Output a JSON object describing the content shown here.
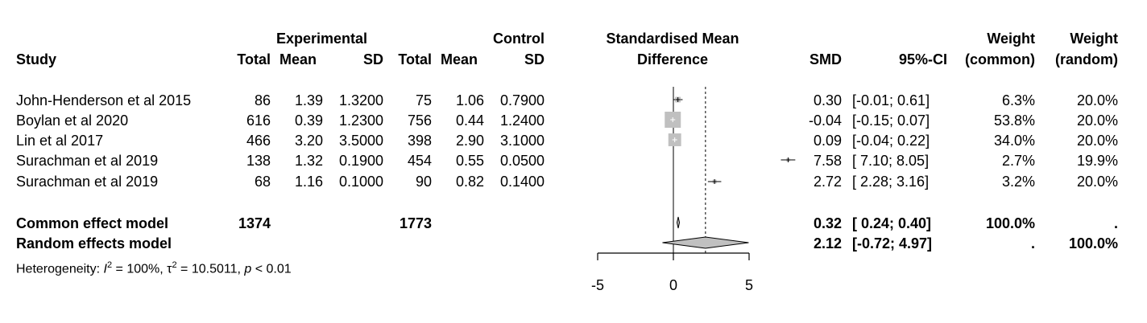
{
  "headers": {
    "study": "Study",
    "experimental": "Experimental",
    "control": "Control",
    "total": "Total",
    "mean": "Mean",
    "sd": "SD",
    "smd_title_1": "Standardised Mean",
    "smd_title_2": "Difference",
    "smd": "SMD",
    "ci": "95%-CI",
    "weight": "Weight",
    "weight_common": "(common)",
    "weight_random": "(random)"
  },
  "studies": [
    {
      "name": "John-Henderson et al 2015",
      "e_total": "86",
      "e_mean": "1.39",
      "e_sd": "1.3200",
      "c_total": "75",
      "c_mean": "1.06",
      "c_sd": "0.7900",
      "smd": "0.30",
      "ci": "[-0.01; 0.61]",
      "w_common": "6.3%",
      "w_random": "20.0%"
    },
    {
      "name": "Boylan et al 2020",
      "e_total": "616",
      "e_mean": "0.39",
      "e_sd": "1.2300",
      "c_total": "756",
      "c_mean": "0.44",
      "c_sd": "1.2400",
      "smd": "-0.04",
      "ci": "[-0.15; 0.07]",
      "w_common": "53.8%",
      "w_random": "20.0%"
    },
    {
      "name": "Lin et al 2017",
      "e_total": "466",
      "e_mean": "3.20",
      "e_sd": "3.5000",
      "c_total": "398",
      "c_mean": "2.90",
      "c_sd": "3.1000",
      "smd": "0.09",
      "ci": "[-0.04; 0.22]",
      "w_common": "34.0%",
      "w_random": "20.0%"
    },
    {
      "name": "Surachman et al 2019",
      "e_total": "138",
      "e_mean": "1.32",
      "e_sd": "0.1900",
      "c_total": "454",
      "c_mean": "0.55",
      "c_sd": "0.0500",
      "smd": "7.58",
      "ci": "[ 7.10; 8.05]",
      "w_common": "2.7%",
      "w_random": "19.9%"
    },
    {
      "name": "Surachman et al 2019",
      "e_total": "68",
      "e_mean": "1.16",
      "e_sd": "0.1000",
      "c_total": "90",
      "c_mean": "0.82",
      "c_sd": "0.1400",
      "smd": "2.72",
      "ci": "[ 2.28; 3.16]",
      "w_common": "3.2%",
      "w_random": "20.0%"
    }
  ],
  "common": {
    "label": "Common effect model",
    "e_total": "1374",
    "c_total": "1773",
    "smd": "0.32",
    "ci": "[ 0.24; 0.40]",
    "w_common": "100.0%",
    "w_random": "."
  },
  "random": {
    "label": "Random effects model",
    "smd": "2.12",
    "ci": "[-0.72; 4.97]",
    "w_common": ".",
    "w_random": "100.0%"
  },
  "heterogeneity": {
    "prefix": "Heterogeneity: ",
    "i2": "100%",
    "tau2": "10.5011",
    "p": "< 0.01"
  },
  "chart_data": {
    "type": "forest",
    "xlim": [
      -5,
      5
    ],
    "xticks": [
      "-5",
      "0",
      "5"
    ],
    "reference_line": 0,
    "studies": [
      {
        "smd": 0.3,
        "lower": -0.01,
        "upper": 0.61,
        "weight_common": 6.3
      },
      {
        "smd": -0.04,
        "lower": -0.15,
        "upper": 0.07,
        "weight_common": 53.8
      },
      {
        "smd": 0.09,
        "lower": -0.04,
        "upper": 0.22,
        "weight_common": 34.0
      },
      {
        "smd": 7.58,
        "lower": 7.1,
        "upper": 8.05,
        "weight_common": 2.7
      },
      {
        "smd": 2.72,
        "lower": 2.28,
        "upper": 3.16,
        "weight_common": 3.2
      }
    ],
    "common_effect": {
      "smd": 0.32,
      "lower": 0.24,
      "upper": 0.4
    },
    "random_effects": {
      "smd": 2.12,
      "lower": -0.72,
      "upper": 4.97
    },
    "colors": {
      "square": "#c0c0c0",
      "diamond": "#c0c0c0",
      "line": "#000000"
    }
  }
}
